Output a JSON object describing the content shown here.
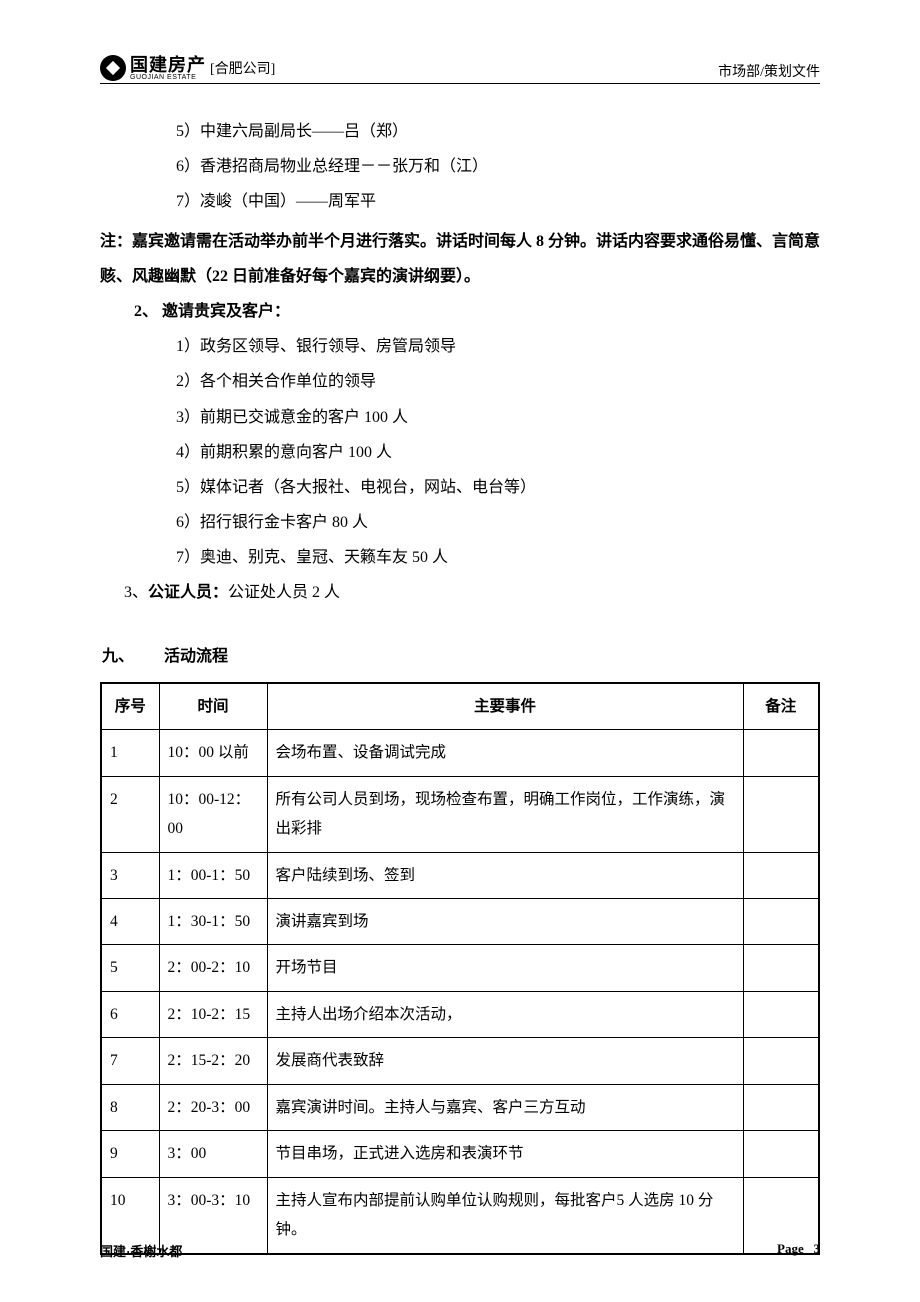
{
  "header": {
    "logo_main": "国建房产",
    "logo_sub": "GUOJIAN ESTATE",
    "logo_suffix": "[合肥公司]",
    "right": "市场部/策划文件"
  },
  "guests_top": [
    "5）中建六局副局长——吕（郑）",
    "6）香港招商局物业总经理－－张万和（江）",
    "7）凌峻（中国）——周军平"
  ],
  "note": "注：嘉宾邀请需在活动举办前半个月进行落实。讲话时间每人 8 分钟。讲话内容要求通俗易懂、言简意赅、风趣幽默（22 日前准备好每个嘉宾的演讲纲要）。",
  "section2": {
    "heading_num": "2、",
    "heading_label": "邀请贵宾及客户：",
    "items": [
      "1）政务区领导、银行领导、房管局领导",
      "2）各个相关合作单位的领导",
      "3）前期已交诚意金的客户 100 人",
      "4）前期积累的意向客户 100 人",
      "5）媒体记者（各大报社、电视台，网站、电台等）",
      "6）招行银行金卡客户 80 人",
      "7）奥迪、别克、皇冠、天籁车友 50 人"
    ]
  },
  "section3": {
    "line_prefix": "3、",
    "line_bold": "公证人员：",
    "line_rest": "公证处人员 2 人"
  },
  "section9": {
    "num": "九、",
    "label": "活动流程"
  },
  "table": {
    "headers": [
      "序号",
      "时间",
      "主要事件",
      "备注"
    ],
    "rows": [
      [
        "1",
        "10：00 以前",
        "会场布置、设备调试完成",
        ""
      ],
      [
        "2",
        "10：00-12：00",
        "所有公司人员到场，现场检查布置，明确工作岗位，工作演练，演出彩排",
        ""
      ],
      [
        "3",
        "1：00-1：50",
        "客户陆续到场、签到",
        ""
      ],
      [
        "4",
        "1：30-1：50",
        "演讲嘉宾到场",
        ""
      ],
      [
        "5",
        "2：00-2：10",
        "开场节目",
        ""
      ],
      [
        "6",
        "2：10-2：15",
        "主持人出场介绍本次活动，",
        ""
      ],
      [
        "7",
        "2：15-2：20",
        "发展商代表致辞",
        ""
      ],
      [
        "8",
        "2：20-3：00",
        "嘉宾演讲时间。主持人与嘉宾、客户三方互动",
        ""
      ],
      [
        "9",
        "3：00",
        "节目串场，正式进入选房和表演环节",
        ""
      ],
      [
        "10",
        "3：00-3：10",
        "主持人宣布内部提前认购单位认购规则，每批客户5 人选房 10 分钟。",
        ""
      ]
    ]
  },
  "footer": {
    "left": "国建·香榭水都",
    "page_label": "Page",
    "page_num": "3"
  }
}
